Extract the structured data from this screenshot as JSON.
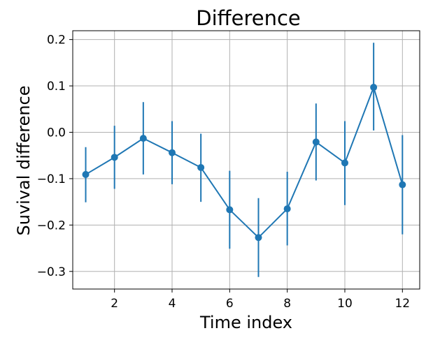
{
  "chart_data": {
    "type": "line",
    "title": "Difference",
    "xlabel": "Time index",
    "ylabel": "Suvival difference",
    "x": [
      1,
      2,
      3,
      4,
      5,
      6,
      7,
      8,
      9,
      10,
      11,
      12
    ],
    "series": [
      {
        "values": [
          -0.091,
          -0.054,
          -0.013,
          -0.044,
          -0.076,
          -0.167,
          -0.227,
          -0.165,
          -0.021,
          -0.066,
          0.097,
          -0.113
        ],
        "err_low": [
          -0.151,
          -0.122,
          -0.091,
          -0.112,
          -0.15,
          -0.251,
          -0.312,
          -0.244,
          -0.104,
          -0.157,
          0.004,
          -0.22
        ],
        "err_high": [
          -0.032,
          0.014,
          0.065,
          0.024,
          -0.003,
          -0.083,
          -0.142,
          -0.085,
          0.062,
          0.024,
          0.193,
          -0.006
        ],
        "color": "#1f77b4"
      }
    ],
    "xlim": [
      0.55,
      12.6
    ],
    "ylim": [
      -0.338,
      0.219
    ],
    "xticks": [
      2,
      4,
      6,
      8,
      10,
      12
    ],
    "yticks": [
      0.2,
      0.1,
      0.0,
      -0.1,
      -0.2,
      -0.3
    ],
    "xtick_labels": [
      "2",
      "4",
      "6",
      "8",
      "10",
      "12"
    ],
    "ytick_labels": [
      "0.2",
      "0.1",
      "0.0",
      "−0.1",
      "−0.2",
      "−0.3"
    ],
    "grid": true,
    "grid_color": "#b0b0b0"
  }
}
